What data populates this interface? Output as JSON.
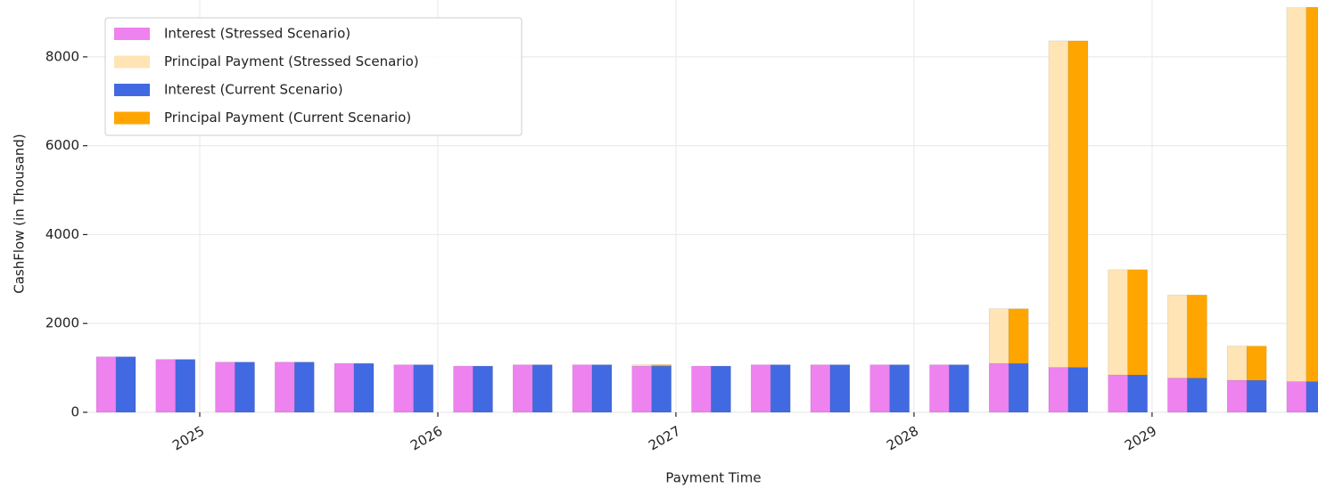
{
  "chart_data": {
    "type": "bar",
    "stacked": true,
    "x_label": "Payment Time",
    "y_label": "CashFlow (in Thousand)",
    "x": [
      2024.648,
      2024.898,
      2025.148,
      2025.398,
      2025.648,
      2025.898,
      2026.148,
      2026.398,
      2026.648,
      2026.898,
      2027.148,
      2027.398,
      2027.648,
      2027.898,
      2028.148,
      2028.398,
      2028.648,
      2028.898,
      2029.148,
      2029.398,
      2029.648
    ],
    "series": [
      {
        "name": "Interest (Stressed Scenario)",
        "color": "#ee82ee",
        "group": "stressed",
        "values": [
          1250,
          1190,
          1130,
          1130,
          1100,
          1070,
          1040,
          1070,
          1070,
          1040,
          1040,
          1070,
          1070,
          1070,
          1070,
          1100,
          1010,
          840,
          770,
          720,
          690
        ]
      },
      {
        "name": "Principal Payment (Stressed Scenario)",
        "color": "#ffe4b5",
        "group": "stressed",
        "values": [
          0,
          0,
          0,
          0,
          0,
          0,
          0,
          0,
          0,
          30,
          0,
          0,
          0,
          0,
          0,
          1230,
          7350,
          2370,
          1870,
          770,
          8510
        ]
      },
      {
        "name": "Interest (Current Scenario)",
        "color": "#4169e1",
        "group": "current",
        "values": [
          1250,
          1190,
          1130,
          1130,
          1100,
          1070,
          1040,
          1070,
          1070,
          1040,
          1040,
          1070,
          1070,
          1070,
          1070,
          1100,
          1010,
          840,
          770,
          720,
          690
        ]
      },
      {
        "name": "Principal Payment (Current Scenario)",
        "color": "#ffa500",
        "group": "current",
        "values": [
          0,
          0,
          0,
          0,
          0,
          0,
          0,
          0,
          0,
          30,
          0,
          0,
          0,
          0,
          0,
          1230,
          7350,
          2370,
          1870,
          770,
          8510
        ]
      }
    ],
    "xlim": [
      2024.528,
      2029.697
    ],
    "xticks": [
      2025,
      2026,
      2027,
      2028,
      2029
    ],
    "ylim": [
      0,
      9080
    ],
    "yticks": [
      0,
      2000,
      4000,
      6000,
      8000
    ],
    "grid": true,
    "legend": "upper left"
  }
}
